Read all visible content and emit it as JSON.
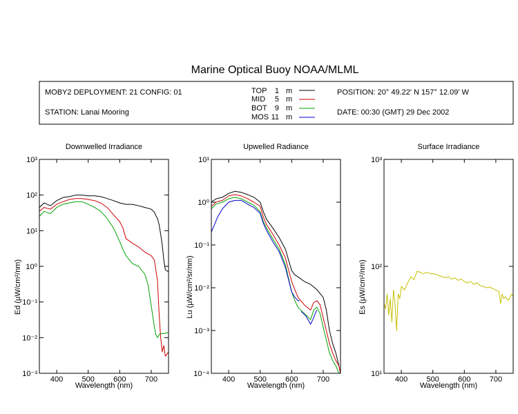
{
  "title": "Marine Optical Buoy NOAA/MLML",
  "header": {
    "deployment": "MOBY2 DEPLOYMENT: 21 CONFIG: 01",
    "station": "STATION: Lanai Mooring",
    "position": "POSITION: 20° 49.22' N   157° 12.09' W",
    "date": "DATE: 00:30 (GMT) 29 Dec 2002",
    "legend": [
      {
        "label": "TOP",
        "depth": "1",
        "unit": "m",
        "color": "#000000"
      },
      {
        "label": "MID",
        "depth": "5",
        "unit": "m",
        "color": "#cc0000"
      },
      {
        "label": "BOT",
        "depth": "9",
        "unit": "m",
        "color": "#00a000"
      },
      {
        "label": "MOS",
        "depth": "11",
        "unit": "m",
        "color": "#0000cc"
      }
    ]
  },
  "chart_data": [
    {
      "type": "line",
      "title": "Downwelled Irradiance",
      "xlabel": "Wavelength (nm)",
      "ylabel": "Ed  (µW/cm²/nm)",
      "xlim": [
        345,
        755
      ],
      "ylim": [
        0.001,
        1000
      ],
      "yscale": "log",
      "xticks": [
        400,
        500,
        600,
        700
      ],
      "yticks": [
        {
          "v": 0.001,
          "label": "10⁻³"
        },
        {
          "v": 0.01,
          "label": "10⁻²"
        },
        {
          "v": 0.1,
          "label": "10⁻¹"
        },
        {
          "v": 1,
          "label": "10⁰"
        },
        {
          "v": 10,
          "label": "10¹"
        },
        {
          "v": 100,
          "label": "10²"
        },
        {
          "v": 1000,
          "label": "10³"
        }
      ],
      "series": [
        {
          "name": "TOP",
          "color": "#000000",
          "x": [
            345,
            360,
            380,
            400,
            420,
            440,
            460,
            480,
            500,
            520,
            540,
            560,
            580,
            600,
            620,
            640,
            660,
            680,
            700,
            710,
            715,
            720,
            725,
            730,
            735,
            740,
            745,
            755
          ],
          "y": [
            45,
            60,
            50,
            70,
            85,
            90,
            100,
            100,
            95,
            95,
            90,
            80,
            70,
            60,
            55,
            55,
            50,
            45,
            40,
            33,
            26,
            22,
            15,
            8,
            4,
            1.5,
            0.8,
            0.7
          ]
        },
        {
          "name": "MID",
          "color": "#cc0000",
          "x": [
            345,
            360,
            380,
            400,
            420,
            440,
            460,
            480,
            500,
            520,
            540,
            560,
            580,
            600,
            610,
            620,
            640,
            660,
            680,
            700,
            710,
            720,
            725,
            730,
            735,
            740,
            745,
            755
          ],
          "y": [
            35,
            45,
            40,
            55,
            65,
            75,
            80,
            80,
            75,
            70,
            60,
            45,
            28,
            18,
            12,
            6,
            4.5,
            3.5,
            2.5,
            2,
            1.5,
            0.4,
            0.05,
            0.01,
            0.004,
            0.006,
            0.003,
            0.004
          ]
        },
        {
          "name": "BOT",
          "color": "#00a000",
          "x": [
            345,
            360,
            380,
            400,
            420,
            440,
            460,
            480,
            500,
            520,
            540,
            560,
            580,
            600,
            610,
            620,
            640,
            660,
            680,
            690,
            700,
            710,
            715,
            720,
            725,
            730,
            740,
            755
          ],
          "y": [
            25,
            35,
            30,
            45,
            55,
            60,
            65,
            65,
            55,
            45,
            35,
            22,
            12,
            5,
            3,
            2,
            1.2,
            1,
            0.6,
            0.3,
            0.08,
            0.02,
            0.012,
            0.01,
            0.012,
            0.013,
            0.013,
            0.014
          ]
        }
      ]
    },
    {
      "type": "line",
      "title": "Upwelled Radiance",
      "xlabel": "Wavelength (nm)",
      "ylabel": "Lu  (µW/cm²/sr/nm)",
      "xlim": [
        345,
        755
      ],
      "ylim": [
        0.0001,
        10
      ],
      "yscale": "log",
      "xticks": [
        400,
        500,
        600,
        700
      ],
      "yticks": [
        {
          "v": 0.0001,
          "label": "10⁻⁴"
        },
        {
          "v": 0.001,
          "label": "10⁻³"
        },
        {
          "v": 0.01,
          "label": "10⁻²"
        },
        {
          "v": 0.1,
          "label": "10⁻¹"
        },
        {
          "v": 1,
          "label": "10⁰"
        },
        {
          "v": 10,
          "label": "10¹"
        }
      ],
      "series": [
        {
          "name": "TOP",
          "color": "#000000",
          "x": [
            345,
            360,
            380,
            400,
            420,
            440,
            460,
            480,
            500,
            510,
            520,
            540,
            560,
            580,
            600,
            610,
            620,
            640,
            660,
            680,
            700,
            710,
            720,
            730,
            740,
            750,
            755
          ],
          "y": [
            1.0,
            1.2,
            1.3,
            1.6,
            1.8,
            1.7,
            1.5,
            1.3,
            1.0,
            0.6,
            0.4,
            0.25,
            0.15,
            0.08,
            0.025,
            0.02,
            0.018,
            0.014,
            0.012,
            0.009,
            0.006,
            0.003,
            0.001,
            0.0005,
            0.0003,
            0.00015,
            0.0001
          ]
        },
        {
          "name": "MID",
          "color": "#cc0000",
          "x": [
            345,
            360,
            380,
            400,
            420,
            440,
            460,
            480,
            500,
            510,
            520,
            540,
            560,
            580,
            600,
            610,
            620,
            640,
            660,
            670,
            680,
            690,
            700,
            710,
            720,
            730,
            740,
            750,
            755
          ],
          "y": [
            0.8,
            1.0,
            1.1,
            1.4,
            1.5,
            1.4,
            1.2,
            1.0,
            0.8,
            0.45,
            0.3,
            0.18,
            0.1,
            0.05,
            0.014,
            0.009,
            0.006,
            0.004,
            0.003,
            0.0045,
            0.005,
            0.004,
            0.002,
            0.001,
            0.0005,
            0.0003,
            0.0002,
            0.00015,
            0.0001
          ]
        },
        {
          "name": "BOT",
          "color": "#00a000",
          "x": [
            345,
            360,
            380,
            400,
            420,
            440,
            460,
            480,
            500,
            510,
            520,
            540,
            560,
            580,
            600,
            610,
            620,
            640,
            660,
            670,
            680,
            690,
            700,
            710,
            720,
            730,
            740,
            750,
            755
          ],
          "y": [
            0.7,
            0.9,
            1.0,
            1.2,
            1.3,
            1.2,
            1.0,
            0.85,
            0.6,
            0.35,
            0.25,
            0.14,
            0.08,
            0.035,
            0.008,
            0.005,
            0.0035,
            0.0025,
            0.0018,
            0.003,
            0.0035,
            0.0025,
            0.0012,
            0.0006,
            0.0003,
            0.0002,
            0.00015,
            0.0001,
            0.0001
          ]
        },
        {
          "name": "MOS",
          "color": "#0000cc",
          "x": [
            345,
            355,
            365,
            380,
            400,
            420,
            440,
            460,
            480,
            500,
            510,
            520,
            540,
            560,
            580,
            600,
            610,
            620,
            625
          ],
          "y": [
            0.2,
            0.3,
            0.45,
            0.7,
            1.0,
            1.1,
            1.1,
            0.9,
            0.75,
            0.55,
            0.32,
            0.22,
            0.12,
            0.07,
            0.03,
            0.008,
            0.006,
            0.005,
            0.005
          ]
        },
        {
          "name": "MOS",
          "color": "#0000cc",
          "x": [
            630,
            645,
            660,
            670,
            675,
            680
          ],
          "y": [
            0.0028,
            0.0022,
            0.0014,
            0.002,
            0.0025,
            0.003
          ]
        }
      ]
    },
    {
      "type": "line",
      "title": "Surface Irradiance",
      "xlabel": "Wavelength (nm)",
      "ylabel": "Es  (µW/cm²/nm)",
      "xlim": [
        345,
        755
      ],
      "ylim": [
        10,
        1000
      ],
      "yscale": "log",
      "xticks": [
        400,
        500,
        600,
        700
      ],
      "yticks": [
        {
          "v": 10,
          "label": "10¹"
        },
        {
          "v": 100,
          "label": "10²"
        },
        {
          "v": 1000,
          "label": "10³"
        }
      ],
      "series": [
        {
          "name": "Es",
          "color": "#c8c000",
          "x": [
            345,
            350,
            355,
            360,
            365,
            370,
            375,
            380,
            385,
            390,
            395,
            400,
            410,
            420,
            430,
            440,
            450,
            460,
            470,
            480,
            490,
            500,
            510,
            520,
            530,
            540,
            550,
            560,
            570,
            580,
            590,
            600,
            610,
            620,
            630,
            640,
            650,
            660,
            670,
            680,
            690,
            700,
            710,
            715,
            720,
            725,
            730,
            740,
            750,
            755
          ],
          "y": [
            45,
            40,
            55,
            35,
            50,
            30,
            60,
            45,
            25,
            55,
            50,
            65,
            60,
            70,
            80,
            75,
            90,
            88,
            85,
            88,
            86,
            85,
            84,
            82,
            80,
            78,
            80,
            76,
            78,
            74,
            76,
            72,
            70,
            72,
            68,
            70,
            66,
            65,
            63,
            64,
            62,
            60,
            58,
            45,
            55,
            50,
            52,
            48,
            55,
            52
          ]
        }
      ]
    }
  ]
}
